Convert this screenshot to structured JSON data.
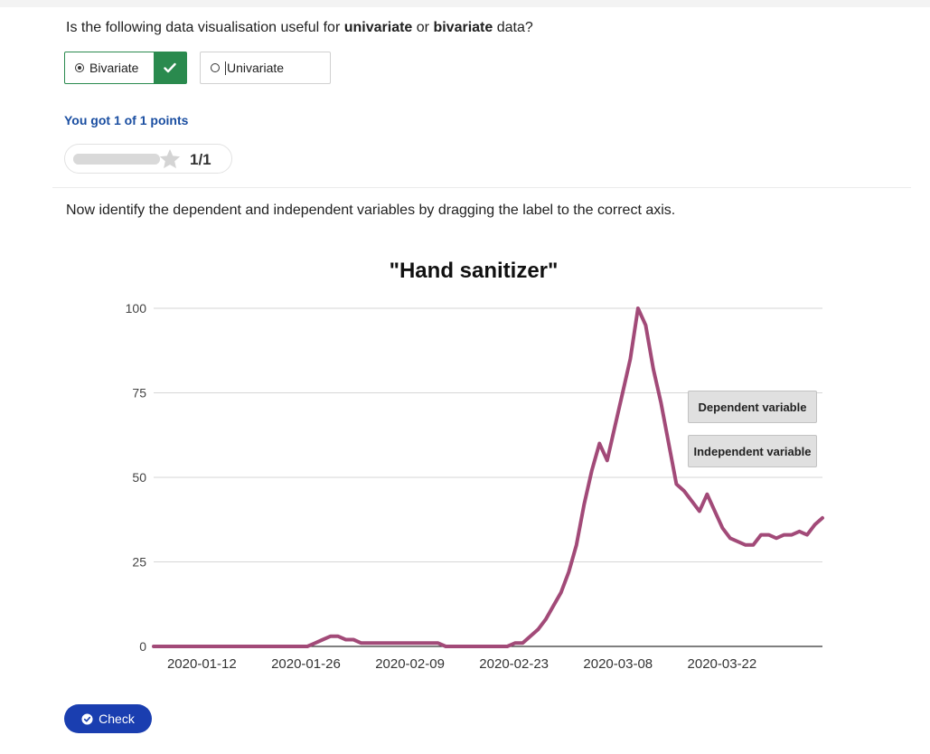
{
  "question1": {
    "prefix": "Is the following data visualisation useful for ",
    "bold1": "univariate",
    "middle": " or ",
    "bold2": "bivariate",
    "suffix": " data?"
  },
  "options": [
    {
      "label": "Bivariate",
      "selected": true,
      "correct": true
    },
    {
      "label": "Univariate",
      "selected": false
    }
  ],
  "feedback": {
    "score_text": "You got 1 of 1 points",
    "progress_fraction": 1.0,
    "progress_label": "1/1"
  },
  "question2": "Now identify the dependent and independent variables by dragging the label to the correct axis.",
  "labels": {
    "dependent": "Dependent variable",
    "independent": "Independent variable"
  },
  "check_button": "Check",
  "colors": {
    "line": "#a24a78",
    "correct": "#2a8a4e",
    "button": "#1a3eb0",
    "score": "#1a4ea1"
  },
  "chart_data": {
    "type": "line",
    "title": "\"Hand sanitizer\"",
    "xlabel": "",
    "ylabel": "",
    "ylim": [
      0,
      100
    ],
    "yticks": [
      0,
      25,
      50,
      75,
      100
    ],
    "xtick_labels": [
      "2020-01-12",
      "2020-01-26",
      "2020-02-09",
      "2020-02-23",
      "2020-03-08",
      "2020-03-22"
    ],
    "grid": true,
    "x_start": "2020-01-06",
    "x_end": "2020-04-05",
    "series": [
      {
        "values": [
          0,
          0,
          0,
          0,
          0,
          0,
          0,
          0,
          0,
          0,
          0,
          0,
          0,
          0,
          0,
          0,
          0,
          0,
          0,
          0,
          0,
          1,
          2,
          3,
          3,
          2,
          2,
          1,
          1,
          1,
          1,
          1,
          1,
          1,
          1,
          1,
          1,
          1,
          0,
          0,
          0,
          0,
          0,
          0,
          0,
          0,
          0,
          1,
          1,
          3,
          5,
          8,
          12,
          16,
          22,
          30,
          42,
          52,
          60,
          55,
          65,
          75,
          85,
          100,
          95,
          82,
          72,
          60,
          48,
          46,
          43,
          40,
          45,
          40,
          35,
          32,
          31,
          30,
          30,
          33,
          33,
          32,
          33,
          33,
          34,
          33,
          36,
          38
        ]
      }
    ]
  }
}
